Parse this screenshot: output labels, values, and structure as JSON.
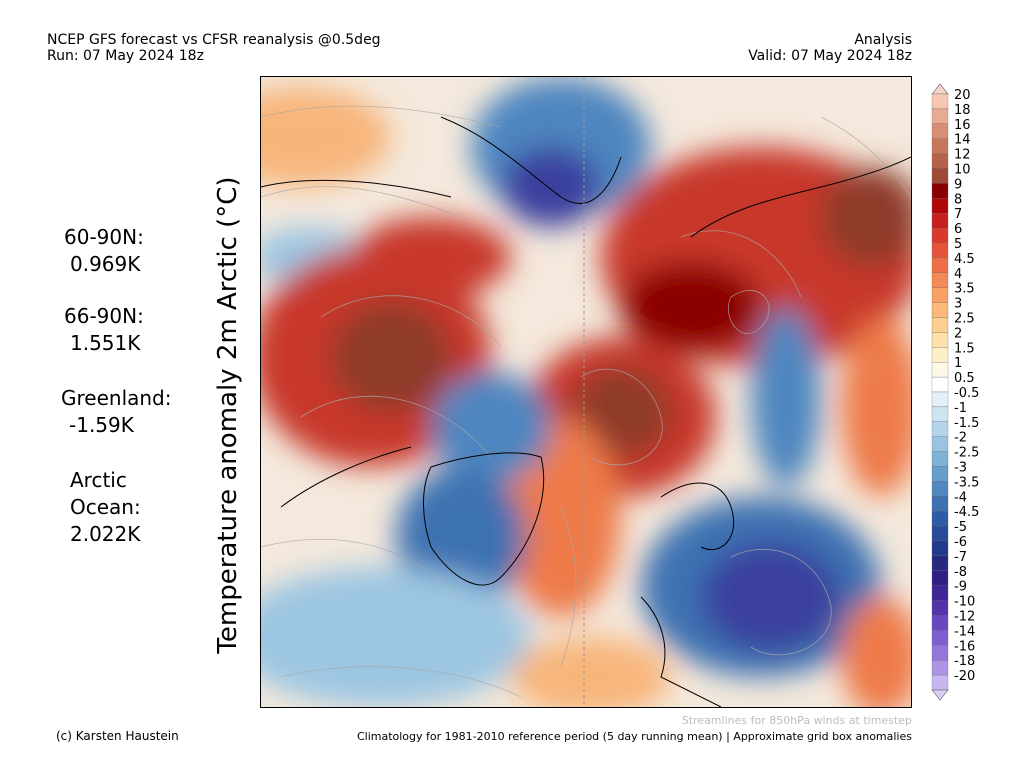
{
  "header": {
    "title": "NCEP GFS forecast vs CFSR reanalysis @0.5deg",
    "run": "Run: 07 May 2024 18z",
    "mode": "Analysis",
    "valid": "Valid: 07 May 2024 18z"
  },
  "axis_label": "Temperature anomaly 2m Arctic (°C)",
  "stats": [
    {
      "label": "60-90N:",
      "value": "0.969K"
    },
    {
      "label": "66-90N:",
      "value": "1.551K"
    },
    {
      "label": "Greenland:",
      "value": "-1.59K"
    },
    {
      "label": "Arctic Ocean:",
      "value": "2.022K",
      "label_lines": [
        "Arctic",
        "Ocean:"
      ]
    }
  ],
  "colorbar": {
    "labels": [
      "20",
      "18",
      "16",
      "14",
      "12",
      "10",
      "9",
      "8",
      "7",
      "6",
      "5",
      "4.5",
      "4",
      "3.5",
      "3",
      "2.5",
      "2",
      "1.5",
      "1",
      "0.5",
      "-0.5",
      "-1",
      "-1.5",
      "-2",
      "-2.5",
      "-3",
      "-3.5",
      "-4",
      "-4.5",
      "-5",
      "-6",
      "-7",
      "-8",
      "-9",
      "-10",
      "-12",
      "-14",
      "-16",
      "-18",
      "-20"
    ],
    "colors": [
      "#f7c7b3",
      "#e9aa92",
      "#d88e74",
      "#c7775c",
      "#b4624a",
      "#9e4a36",
      "#8a0000",
      "#b00808",
      "#c81e1e",
      "#d93a2b",
      "#e5543a",
      "#ee6f47",
      "#f48856",
      "#f8a065",
      "#fbb878",
      "#fcce8f",
      "#fde1a8",
      "#fdefc7",
      "#fdf8e8",
      "#ffffff",
      "#e4f0f8",
      "#cde4f1",
      "#b3d4ea",
      "#99c3e1",
      "#80b1d6",
      "#679dcb",
      "#5088bf",
      "#3c72b2",
      "#2c5da4",
      "#274b97",
      "#223a8a",
      "#25287c",
      "#2e1f85",
      "#3f2597",
      "#5233ab",
      "#6847bf",
      "#7d5dcf",
      "#9576dc",
      "#ad93e6",
      "#c8b6f0"
    ],
    "top_triangle": "#f2d5c8",
    "bottom_triangle": "#d9cff5"
  },
  "footer": {
    "credit": "(c) Karsten Haustein",
    "streamlines": "Streamlines for 850hPa winds at timestep",
    "climatology": "Climatology for 1981-2010 reference period (5 day running mean) | Approximate grid box anomalies"
  },
  "map_palette": {
    "warm_dark": "#8e3a2a",
    "warm": "#c8392a",
    "warm_light": "#ee7a4a",
    "mild": "#f8b57a",
    "neutral": "#f6f2ee",
    "cool": "#9cc6e2",
    "cold": "#4e86c0",
    "very_cold": "#3a3f9e",
    "extreme_cold": "#4a2aa8",
    "land_outline": "#000000",
    "streamline": "#a8a8a8"
  }
}
